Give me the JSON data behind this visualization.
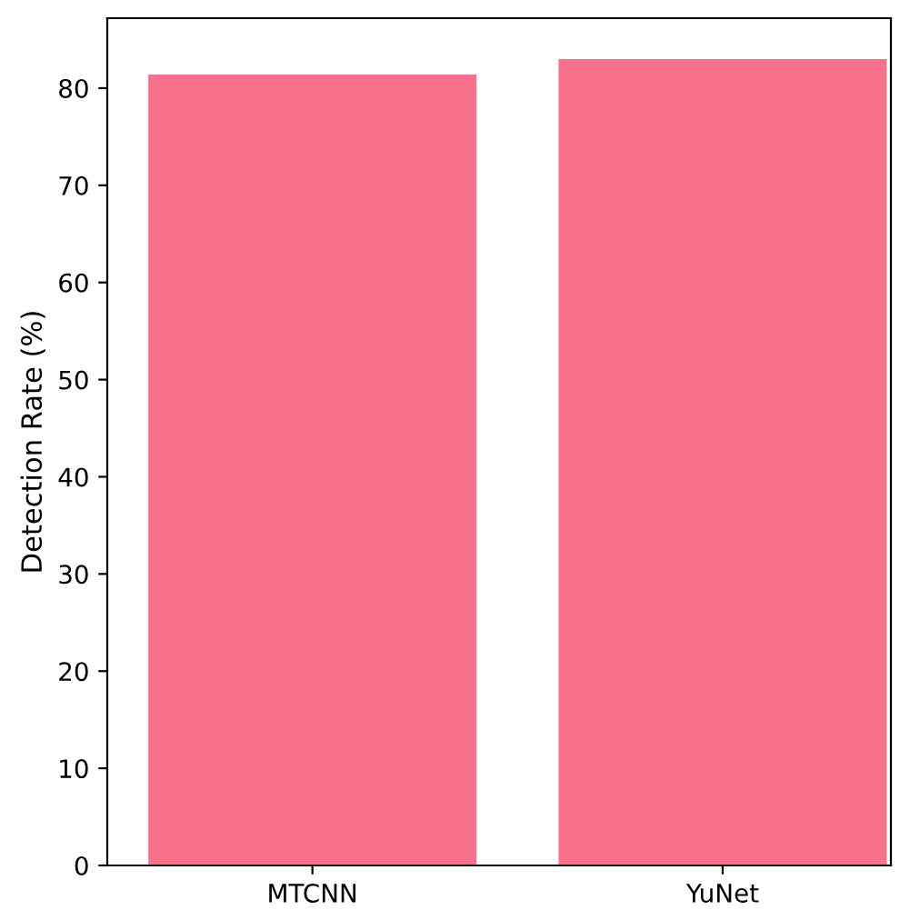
{
  "chart_data": {
    "type": "bar",
    "ylabel": "Detection Rate (%)",
    "categories": [
      "MTCNN",
      "YuNet"
    ],
    "values": [
      81.4,
      83.0
    ],
    "color": "#f67189",
    "ylim": [
      0,
      87.2
    ],
    "yticks": [
      0,
      10,
      20,
      30,
      40,
      50,
      60,
      70,
      80
    ],
    "grid": false
  }
}
